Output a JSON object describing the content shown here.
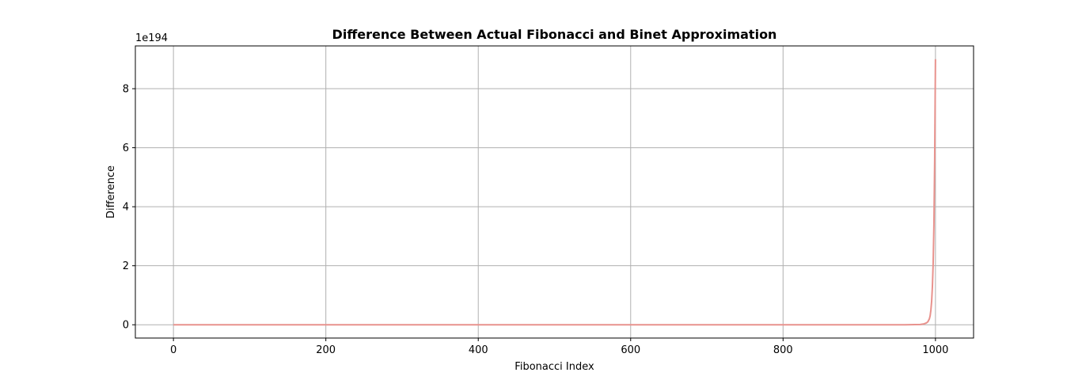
{
  "chart_data": {
    "type": "line",
    "title": "Difference Between Actual Fibonacci and Binet Approximation",
    "xlabel": "Fibonacci Index",
    "ylabel": "Difference",
    "y_offset_text": "1e194",
    "xlim": [
      -50,
      1050
    ],
    "ylim": [
      -0.45,
      9.45
    ],
    "xticks": [
      0,
      200,
      400,
      600,
      800,
      1000
    ],
    "xtick_labels": [
      "0",
      "200",
      "400",
      "600",
      "800",
      "1000"
    ],
    "yticks": [
      0,
      2,
      4,
      6,
      8
    ],
    "ytick_labels": [
      "0",
      "2",
      "4",
      "6",
      "8"
    ],
    "grid": true,
    "line_color": "#e8928d",
    "series": [
      {
        "name": "",
        "x": [
          0,
          100,
          200,
          300,
          400,
          500,
          600,
          700,
          800,
          900,
          960,
          980,
          985,
          988,
          990,
          992,
          993,
          994,
          995,
          996,
          997,
          998,
          999,
          1000
        ],
        "y": [
          0,
          0,
          0,
          0,
          0,
          0,
          0,
          0,
          0,
          0,
          0.001,
          0.01,
          0.03,
          0.06,
          0.1,
          0.2,
          0.3,
          0.5,
          0.8,
          1.3,
          2.1,
          3.4,
          5.6,
          9.0
        ]
      }
    ]
  }
}
